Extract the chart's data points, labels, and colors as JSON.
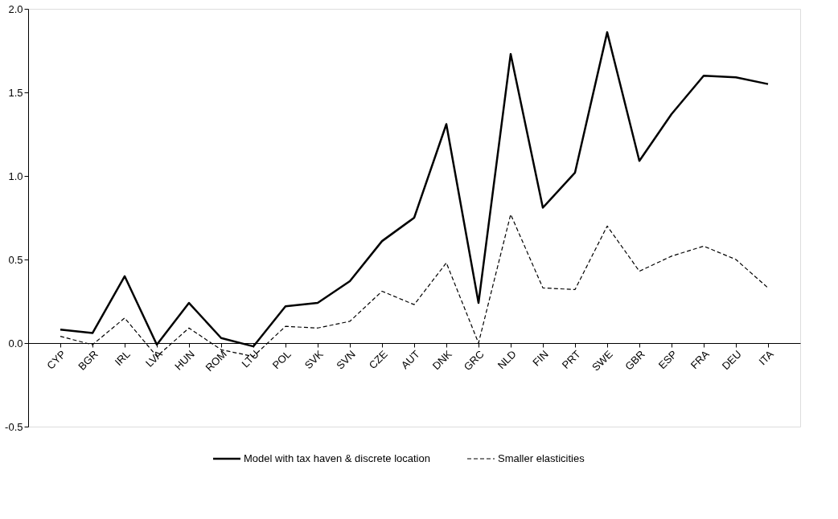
{
  "chart_data": {
    "type": "line",
    "categories": [
      "CYP",
      "BGR",
      "IRL",
      "LVA",
      "HUN",
      "ROM",
      "LTU",
      "POL",
      "SVK",
      "SVN",
      "CZE",
      "AUT",
      "DNK",
      "GRC",
      "NLD",
      "FIN",
      "PRT",
      "SWE",
      "GBR",
      "ESP",
      "FRA",
      "DEU",
      "ITA"
    ],
    "series": [
      {
        "name": "Model with tax haven & discrete location",
        "color": "#000000",
        "line_style": "solid",
        "values": [
          0.08,
          0.06,
          0.4,
          -0.01,
          0.24,
          0.03,
          -0.02,
          0.22,
          0.24,
          0.37,
          0.61,
          0.75,
          1.31,
          0.24,
          1.73,
          0.81,
          1.02,
          1.86,
          1.09,
          1.37,
          1.6,
          1.59,
          1.55
        ]
      },
      {
        "name": "Smaller elasticities",
        "color": "#000000",
        "line_style": "dashed",
        "values": [
          0.04,
          -0.01,
          0.15,
          -0.08,
          0.09,
          -0.04,
          -0.08,
          0.1,
          0.09,
          0.13,
          0.31,
          0.23,
          0.48,
          0.0,
          0.77,
          0.33,
          0.32,
          0.7,
          0.43,
          0.52,
          0.58,
          0.5,
          0.33
        ]
      }
    ],
    "ylim": [
      -0.5,
      2.0
    ],
    "yticks": [
      {
        "value": -0.5,
        "label": "-0.5"
      },
      {
        "value": 0,
        "label": "0.0"
      },
      {
        "value": 0.5,
        "label": "0.5"
      },
      {
        "value": 1,
        "label": "1.0"
      },
      {
        "value": 1.5,
        "label": "1.5"
      },
      {
        "value": 2,
        "label": "2.0"
      }
    ],
    "grid": false,
    "legend": "bottom",
    "marker": "none"
  }
}
